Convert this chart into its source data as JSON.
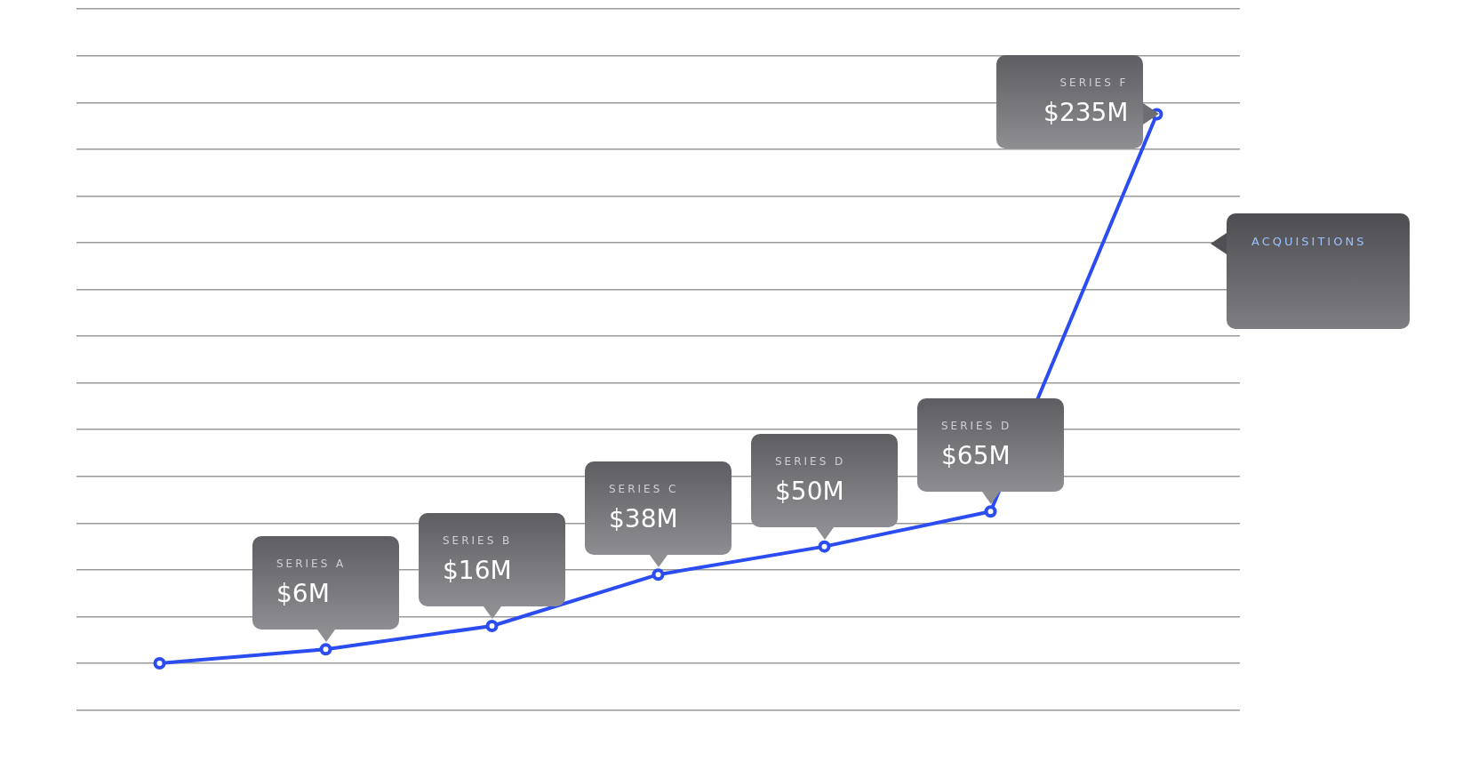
{
  "chart_data": {
    "type": "line",
    "categories": [
      null,
      null,
      null,
      null,
      null,
      null,
      null
    ],
    "series": [
      {
        "values": [
          0,
          6,
          16,
          38,
          50,
          65,
          235
        ],
        "color": "#2a4cf0",
        "value_labels": [
          null,
          "$6M",
          "$16M",
          "$38M",
          "$50M",
          "$65M",
          "$235M"
        ]
      }
    ],
    "annotations": [
      "SERIES A",
      "SERIES B",
      "SERIES C",
      "SERIES D",
      "SERIES D",
      "SERIES F",
      "ACQUISITIONS"
    ],
    "ylim": [
      -20,
      280
    ],
    "yticks": [
      {
        "value": -20,
        "label": null
      },
      {
        "value": 0,
        "label": null
      },
      {
        "value": 20,
        "label": null
      },
      {
        "value": 40,
        "label": null
      },
      {
        "value": 60,
        "label": null
      },
      {
        "value": 80,
        "label": null
      },
      {
        "value": 100,
        "label": null
      },
      {
        "value": 120,
        "label": null
      },
      {
        "value": 140,
        "label": null
      },
      {
        "value": 160,
        "label": null
      },
      {
        "value": 180,
        "label": null
      },
      {
        "value": 200,
        "label": null
      },
      {
        "value": 220,
        "label": null
      },
      {
        "value": 240,
        "label": null
      },
      {
        "value": 260,
        "label": null
      },
      {
        "value": 280,
        "label": null
      }
    ],
    "grid": "y",
    "legend": false,
    "marker": "circle",
    "line_style": "solid"
  }
}
